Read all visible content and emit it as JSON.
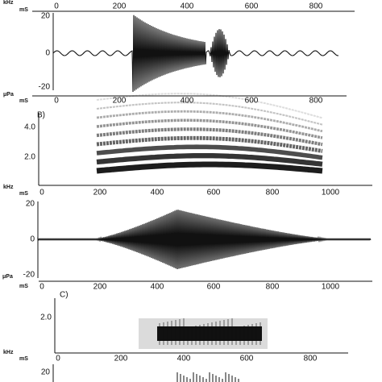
{
  "panel_a": {
    "spectrogram_axis": {
      "y_unit": "kHz",
      "x_unit": "mS",
      "xticks": [
        "0",
        "200",
        "400",
        "600",
        "800"
      ]
    },
    "waveform": {
      "yticks": [
        "20",
        "0",
        "-20"
      ],
      "y_unit": "μPa",
      "x_unit": "mS",
      "xticks": [
        "0",
        "200",
        "400",
        "600",
        "800"
      ]
    }
  },
  "panel_b": {
    "label": "B)",
    "spectrogram": {
      "yticks": [
        "4.0",
        "2.0"
      ],
      "y_unit": "kHz",
      "x_unit": "mS",
      "xticks": [
        "0",
        "200",
        "400",
        "600",
        "800",
        "1000"
      ]
    },
    "waveform": {
      "yticks": [
        "20",
        "0",
        "-20"
      ],
      "y_unit": "μPa",
      "x_unit": "mS",
      "xticks": [
        "0",
        "200",
        "400",
        "600",
        "800",
        "1000"
      ]
    }
  },
  "panel_c": {
    "label": "C)",
    "spectrogram": {
      "yticks": [
        "2.0"
      ],
      "y_unit": "kHz",
      "x_unit": "mS",
      "xticks": [
        "0",
        "200",
        "400",
        "600",
        "800"
      ]
    },
    "waveform": {
      "yticks": [
        "20"
      ]
    }
  }
}
